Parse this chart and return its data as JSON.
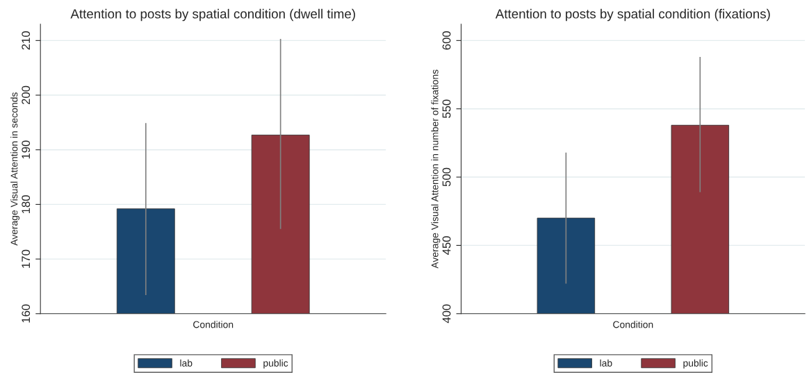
{
  "chart_data": [
    {
      "type": "bar",
      "title": "Attention to posts by spatial condition (dwell time)",
      "xlabel": "Condition",
      "ylabel": "Average Visual Attention in seconds",
      "categories": [
        null
      ],
      "series": [
        {
          "name": "lab",
          "color": "#1a4770",
          "values": [
            179.2
          ],
          "errors": [
            [
              163.4,
              194.9
            ]
          ]
        },
        {
          "name": "public",
          "color": "#8f353c",
          "values": [
            192.7
          ],
          "errors": [
            [
              175.5,
              210.3
            ]
          ]
        }
      ],
      "ylim": [
        160,
        213
      ],
      "yticks": [
        160,
        170,
        180,
        190,
        200,
        210
      ],
      "grid": "y",
      "legend": "bottom"
    },
    {
      "type": "bar",
      "title": "Attention to posts by spatial condition (fixations)",
      "xlabel": "Condition",
      "ylabel": "Average Visual Attention in number of fixations",
      "categories": [
        null
      ],
      "series": [
        {
          "name": "lab",
          "color": "#1a4770",
          "values": [
            470
          ],
          "errors": [
            [
              422,
              518
            ]
          ]
        },
        {
          "name": "public",
          "color": "#8f353c",
          "values": [
            538
          ],
          "errors": [
            [
              489,
              588
            ]
          ]
        }
      ],
      "ylim": [
        400,
        612
      ],
      "yticks": [
        400,
        450,
        500,
        550,
        600
      ],
      "grid": "y",
      "legend": "bottom"
    }
  ]
}
